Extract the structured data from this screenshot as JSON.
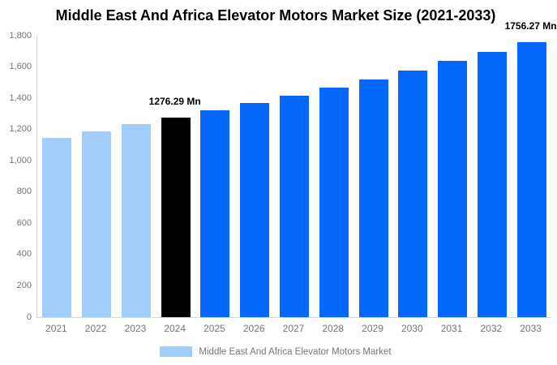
{
  "title": "Middle East And Africa Elevator Motors Market Size (2021-2033)",
  "legend": {
    "label": "Middle East And Africa Elevator Motors Market",
    "swatch_color": "#a2ccf9"
  },
  "colors": {
    "historical_bar": "#a2ccf9",
    "base_year_bar": "#000000",
    "forecast_bar": "#0667fb",
    "axis_line": "#d6d6d6",
    "tick_label_text": "#757575",
    "annotation_text": "#000000",
    "title_text": "#000000"
  },
  "chart_data": {
    "type": "bar",
    "title": "Middle East And Africa Elevator Motors Market Size (2021-2033)",
    "unit": "Mn",
    "categories": [
      "2021",
      "2022",
      "2023",
      "2024",
      "2025",
      "2026",
      "2027",
      "2028",
      "2029",
      "2030",
      "2031",
      "2032",
      "2033"
    ],
    "series": [
      {
        "name": "Middle East And Africa Elevator Motors Market",
        "values": [
          1148,
          1190,
          1235,
          1276.29,
          1322,
          1369,
          1418,
          1469,
          1522,
          1576,
          1638,
          1697,
          1756.27
        ]
      }
    ],
    "bar_colors": [
      "#a2ccf9",
      "#a2ccf9",
      "#a2ccf9",
      "#000000",
      "#0667fb",
      "#0667fb",
      "#0667fb",
      "#0667fb",
      "#0667fb",
      "#0667fb",
      "#0667fb",
      "#0667fb",
      "#0667fb"
    ],
    "annotations": [
      {
        "category": "2024",
        "text": "1276.29 Mn"
      },
      {
        "category": "2033",
        "text": "1756.27 Mn"
      }
    ],
    "xlabel": "",
    "ylabel": "",
    "ylim": [
      0,
      1800
    ],
    "ytick_step": 200,
    "ytick_labels": [
      "0",
      "200",
      "400",
      "600",
      "800",
      "1,000",
      "1,200",
      "1,400",
      "1,600",
      "1,800"
    ],
    "grid": false,
    "legend_position": "bottom"
  }
}
